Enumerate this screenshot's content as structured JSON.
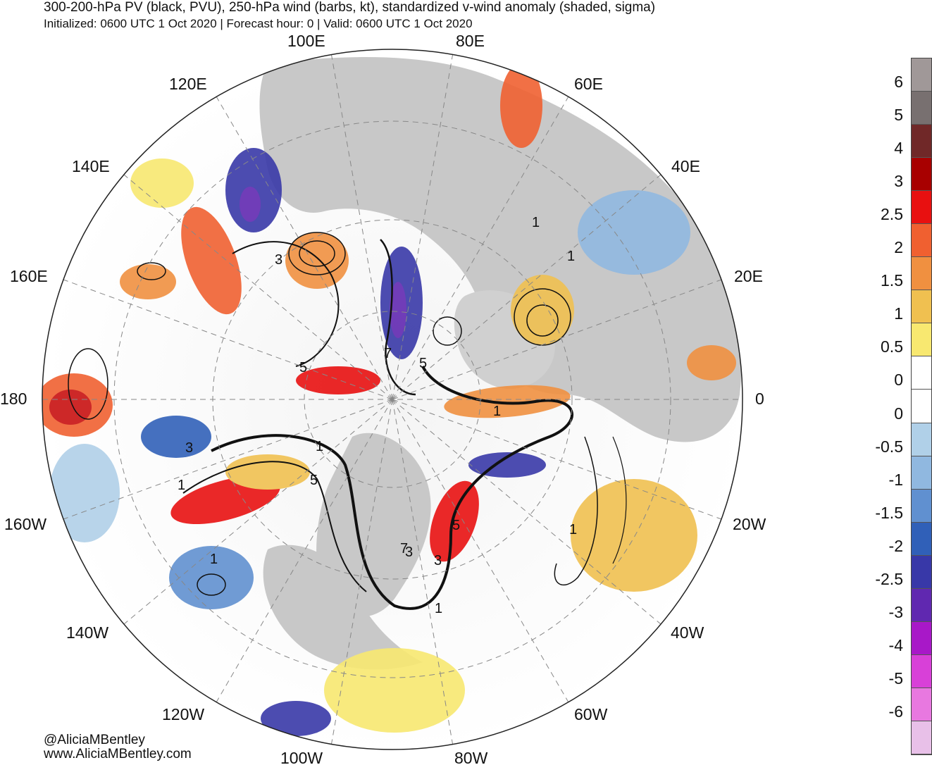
{
  "title": "300-200-hPa PV (black, PVU), 250-hPa wind (barbs, kt), standardized v-wind anomaly (shaded, sigma)",
  "subtitle": "Initialized: 0600 UTC 1 Oct 2020 | Forecast hour: 0 | Valid: 0600 UTC 1 Oct 2020",
  "credits": [
    "@AliciaMBentley",
    "www.AliciaMBentley.com"
  ],
  "map": {
    "projection": "north-polar-stereographic",
    "longitude_labels": [
      "100E",
      "80E",
      "60E",
      "40E",
      "20E",
      "0",
      "20W",
      "40W",
      "60W",
      "80W",
      "100W",
      "120W",
      "140W",
      "160W",
      "180",
      "160E",
      "140E",
      "120E"
    ],
    "pv_contour_labels": [
      "1",
      "3",
      "5",
      "7",
      "1",
      "3",
      "5",
      "5",
      "5",
      "3",
      "1",
      "1",
      "1",
      "3",
      "1",
      "7",
      "1",
      "1"
    ]
  },
  "colorbar": {
    "labels": [
      "6",
      "5",
      "4",
      "3",
      "2.5",
      "2",
      "1.5",
      "1",
      "0.5",
      "0",
      "0",
      "-0.5",
      "-1",
      "-1.5",
      "-2",
      "-2.5",
      "-3",
      "-4",
      "-5",
      "-6"
    ],
    "colors": [
      "#a09898",
      "#787070",
      "#702828",
      "#a80000",
      "#e81010",
      "#f06030",
      "#f09040",
      "#f0c050",
      "#f8e870",
      "#ffffff",
      "#ffffff",
      "#b0d0e8",
      "#90b8e0",
      "#6090d0",
      "#3060b8",
      "#3838a8",
      "#6028b0",
      "#a818c8",
      "#d840d8",
      "#e878e0",
      "#e8c0e8"
    ]
  }
}
